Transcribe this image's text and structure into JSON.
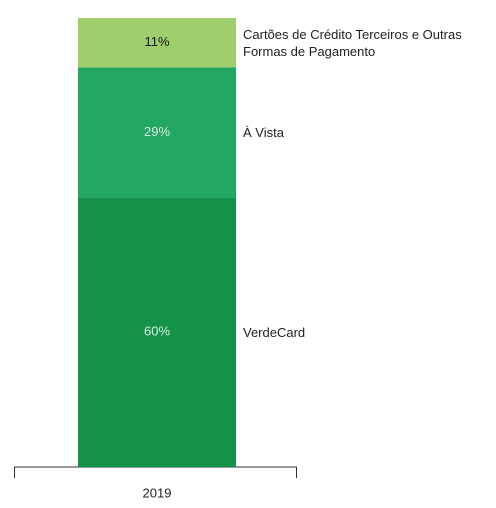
{
  "chart_data": {
    "type": "stacked_bar",
    "categories": [
      "2019"
    ],
    "series": [
      {
        "name": "VerdeCard",
        "color": "#15924a",
        "label_color": "#d8f0df",
        "values": [
          60
        ],
        "value_labels": [
          "60%"
        ]
      },
      {
        "name": "À Vista",
        "color": "#22a660",
        "label_color": "#d8f0df",
        "values": [
          29
        ],
        "value_labels": [
          "29%"
        ]
      },
      {
        "name": "Cartões de Crédito Terceiros e Outras Formas de Pagamento",
        "color": "#9fce6c",
        "label_color": "#111111",
        "values": [
          11
        ],
        "value_labels": [
          "11%"
        ]
      }
    ],
    "ylim": [
      0,
      100
    ]
  }
}
